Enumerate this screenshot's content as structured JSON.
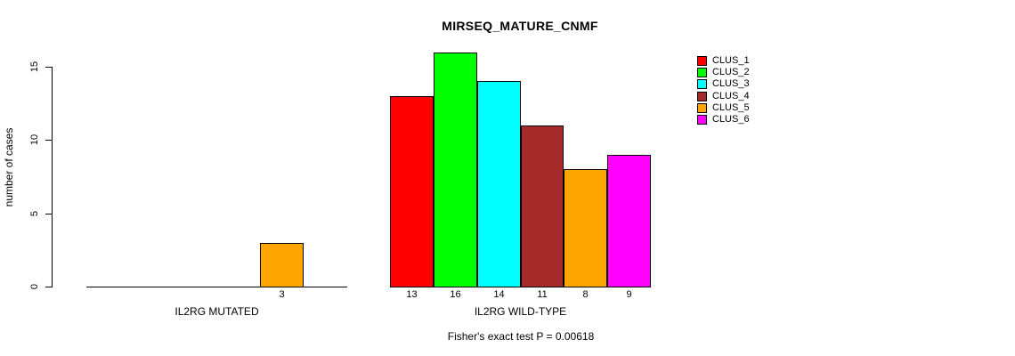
{
  "chart_data": {
    "type": "bar",
    "title": "MIRSEQ_MATURE_CNMF",
    "ylabel": "number of cases",
    "xlabel": "",
    "ylim": [
      0,
      15
    ],
    "yticks": [
      0,
      5,
      10,
      15
    ],
    "grid": false,
    "legend_position": "right-outside",
    "categories": [
      "IL2RG MUTATED",
      "IL2RG WILD-TYPE"
    ],
    "groups": [
      {
        "label": "IL2RG MUTATED",
        "values": [
          0,
          0,
          0,
          0,
          3,
          0
        ]
      },
      {
        "label": "IL2RG WILD-TYPE",
        "values": [
          13,
          16,
          14,
          11,
          8,
          9
        ]
      }
    ],
    "series": [
      {
        "name": "CLUS_1",
        "color": "#FF0000"
      },
      {
        "name": "CLUS_2",
        "color": "#00FF00"
      },
      {
        "name": "CLUS_3",
        "color": "#00FFFF"
      },
      {
        "name": "CLUS_4",
        "color": "#A52A2A"
      },
      {
        "name": "CLUS_5",
        "color": "#FFA500"
      },
      {
        "name": "CLUS_6",
        "color": "#FF00FF"
      }
    ],
    "bar_value_labels_shown_when": "value > 0",
    "note": "Fisher's exact test P = 0.00618",
    "colors": {
      "axis": "#000000",
      "text": "#000000",
      "background": "#FFFFFF"
    }
  }
}
